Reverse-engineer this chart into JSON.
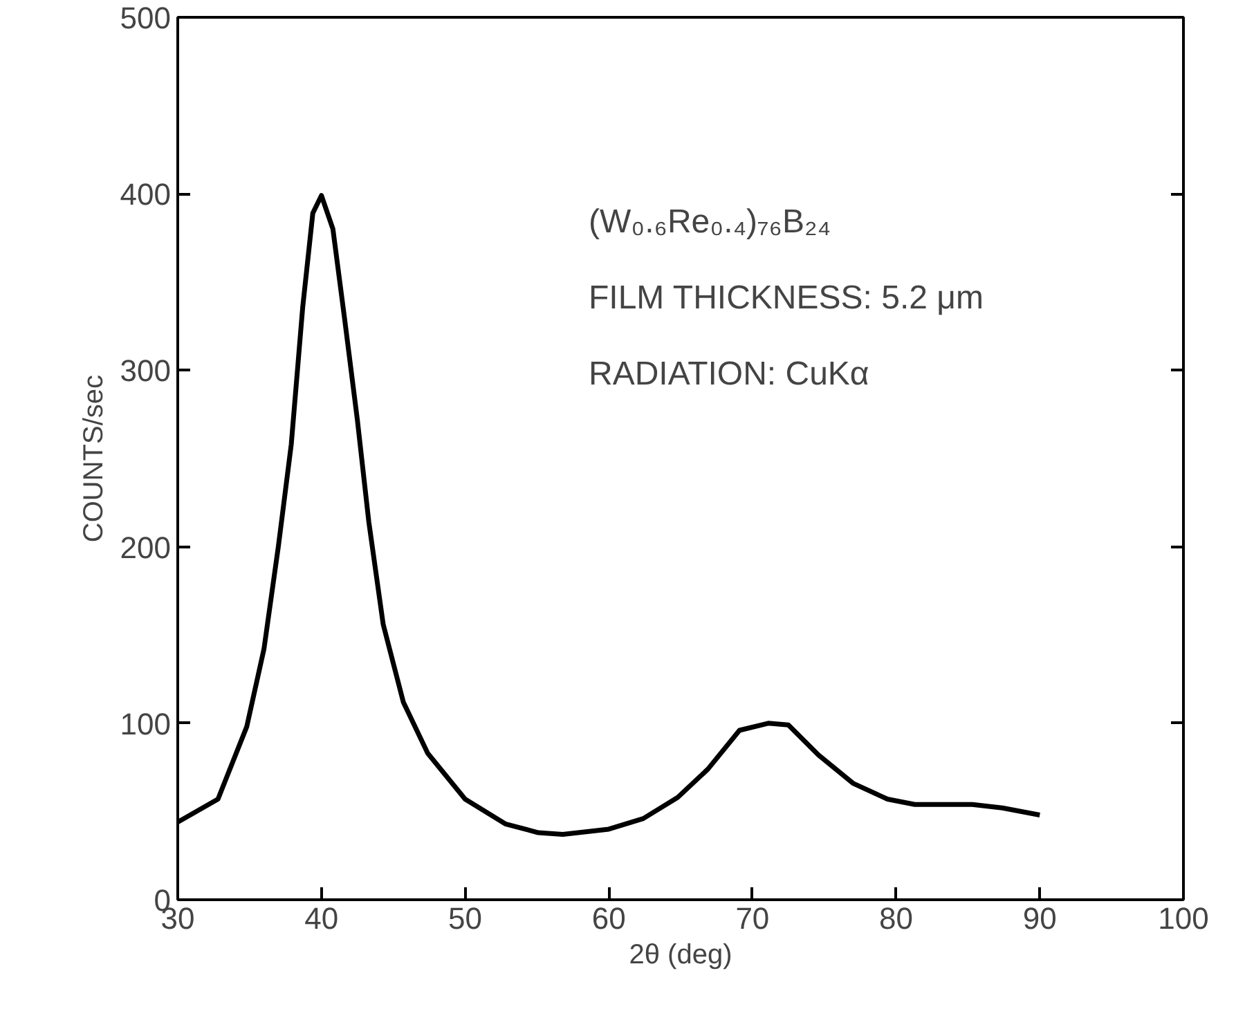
{
  "chart_data": {
    "type": "line",
    "xlabel": "2θ (deg)",
    "ylabel": "COUNTS/sec",
    "annotations": [
      "(W₀.₆Re₀.₄)₇₆B₂₄",
      "FILM THICKNESS: 5.2 μm",
      "RADIATION: CuKα"
    ],
    "x": [
      30,
      32.8,
      34.8,
      36,
      37,
      37.9,
      38.7,
      39.4,
      40,
      40.8,
      41.6,
      42.5,
      43.3,
      44.3,
      45.7,
      47.4,
      50,
      52.8,
      55.1,
      56.8,
      60,
      62.4,
      64.8,
      66.9,
      69.1,
      71.1,
      72.5,
      74.6,
      77,
      79.4,
      81.3,
      85.3,
      87.4,
      90
    ],
    "series": [
      {
        "color": "#000000",
        "values": [
          44,
          57,
          98,
          142,
          200,
          258,
          336,
          389,
          399,
          380,
          330,
          272,
          214,
          156,
          112,
          83,
          57,
          43,
          38,
          37,
          40,
          46,
          58,
          74,
          96,
          100,
          99,
          82,
          66,
          57,
          54,
          54,
          52,
          48
        ]
      }
    ],
    "xlim": [
      30,
      100
    ],
    "ylim": [
      0,
      500
    ],
    "xticks": [
      30,
      40,
      50,
      60,
      70,
      80,
      90,
      100
    ],
    "yticks": [
      0,
      100,
      200,
      300,
      400,
      500
    ],
    "grid": false,
    "marker": "none",
    "line_style": "solid"
  }
}
